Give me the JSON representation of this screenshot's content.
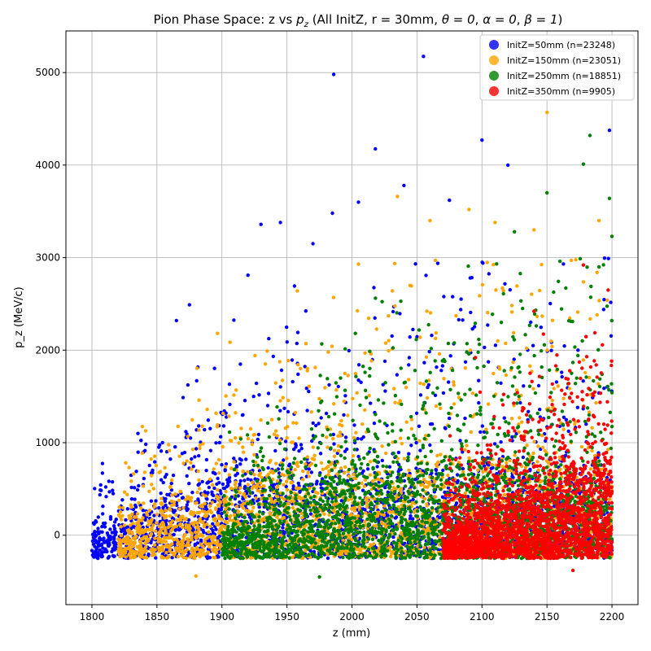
{
  "chart_data": {
    "type": "scatter",
    "title": "Pion Phase Space: z vs p_z (All InitZ, r = 30mm, θ = 0, α = 0, β = 1)",
    "xlabel": "z (mm)",
    "ylabel": "p_z (MeV/c)",
    "xlim": [
      1780,
      2220
    ],
    "ylim": [
      -750,
      5450
    ],
    "xticks": [
      1800,
      1850,
      1900,
      1950,
      2000,
      2050,
      2100,
      2150,
      2200
    ],
    "yticks": [
      0,
      1000,
      2000,
      3000,
      4000,
      5000
    ],
    "grid": true,
    "legend_position": "top-right",
    "series": [
      {
        "name": "InitZ=50mm (n=23248)",
        "color": "#0000ff",
        "z_range": [
          1800,
          2200
        ],
        "density_center_z": 1900,
        "points": [
          [
            1986,
            4980
          ],
          [
            2055,
            5175
          ],
          [
            2018,
            4175
          ],
          [
            2100,
            4270
          ],
          [
            2198,
            4375
          ],
          [
            2005,
            3600
          ],
          [
            1985,
            3480
          ],
          [
            1930,
            3360
          ],
          [
            1945,
            3380
          ],
          [
            2040,
            3780
          ],
          [
            2075,
            3620
          ],
          [
            1865,
            2320
          ],
          [
            1875,
            2490
          ],
          [
            1920,
            2810
          ],
          [
            1970,
            3150
          ],
          [
            2120,
            4000
          ]
        ]
      },
      {
        "name": "InitZ=150mm (n=23051)",
        "color": "#ffa500",
        "z_range": [
          1820,
          2200
        ],
        "density_center_z": 1990,
        "points": [
          [
            2150,
            4570
          ],
          [
            2035,
            3660
          ],
          [
            2090,
            3520
          ],
          [
            2110,
            3380
          ],
          [
            2140,
            3300
          ],
          [
            2190,
            3400
          ],
          [
            1880,
            -440
          ],
          [
            1958,
            2640
          ],
          [
            2005,
            2930
          ],
          [
            2060,
            3400
          ]
        ]
      },
      {
        "name": "InitZ=250mm (n=18851)",
        "color": "#008000",
        "z_range": [
          1900,
          2200
        ],
        "density_center_z": 2080,
        "points": [
          [
            2183,
            4320
          ],
          [
            2178,
            4010
          ],
          [
            2198,
            3640
          ],
          [
            2200,
            3230
          ],
          [
            2150,
            3700
          ],
          [
            2125,
            3280
          ],
          [
            1975,
            -450
          ],
          [
            2160,
            2960
          ],
          [
            2190,
            2900
          ]
        ]
      },
      {
        "name": "InitZ=350mm (n=9905)",
        "color": "#ff0000",
        "z_range": [
          2070,
          2200
        ],
        "density_center_z": 2160,
        "points": [
          [
            2178,
            2920
          ],
          [
            2197,
            2650
          ],
          [
            2140,
            2420
          ],
          [
            2095,
            1920
          ],
          [
            2170,
            -380
          ]
        ]
      }
    ]
  },
  "labels": {
    "title_prefix": "Pion Phase Space: z vs ",
    "title_p": "p",
    "title_sub": "z",
    "title_mid": " (All InitZ, r = 30mm, ",
    "theta": "θ = 0",
    "comma1": ", ",
    "alpha": "α = 0",
    "comma2": ", ",
    "beta": "β = 1",
    "title_suffix": ")"
  }
}
